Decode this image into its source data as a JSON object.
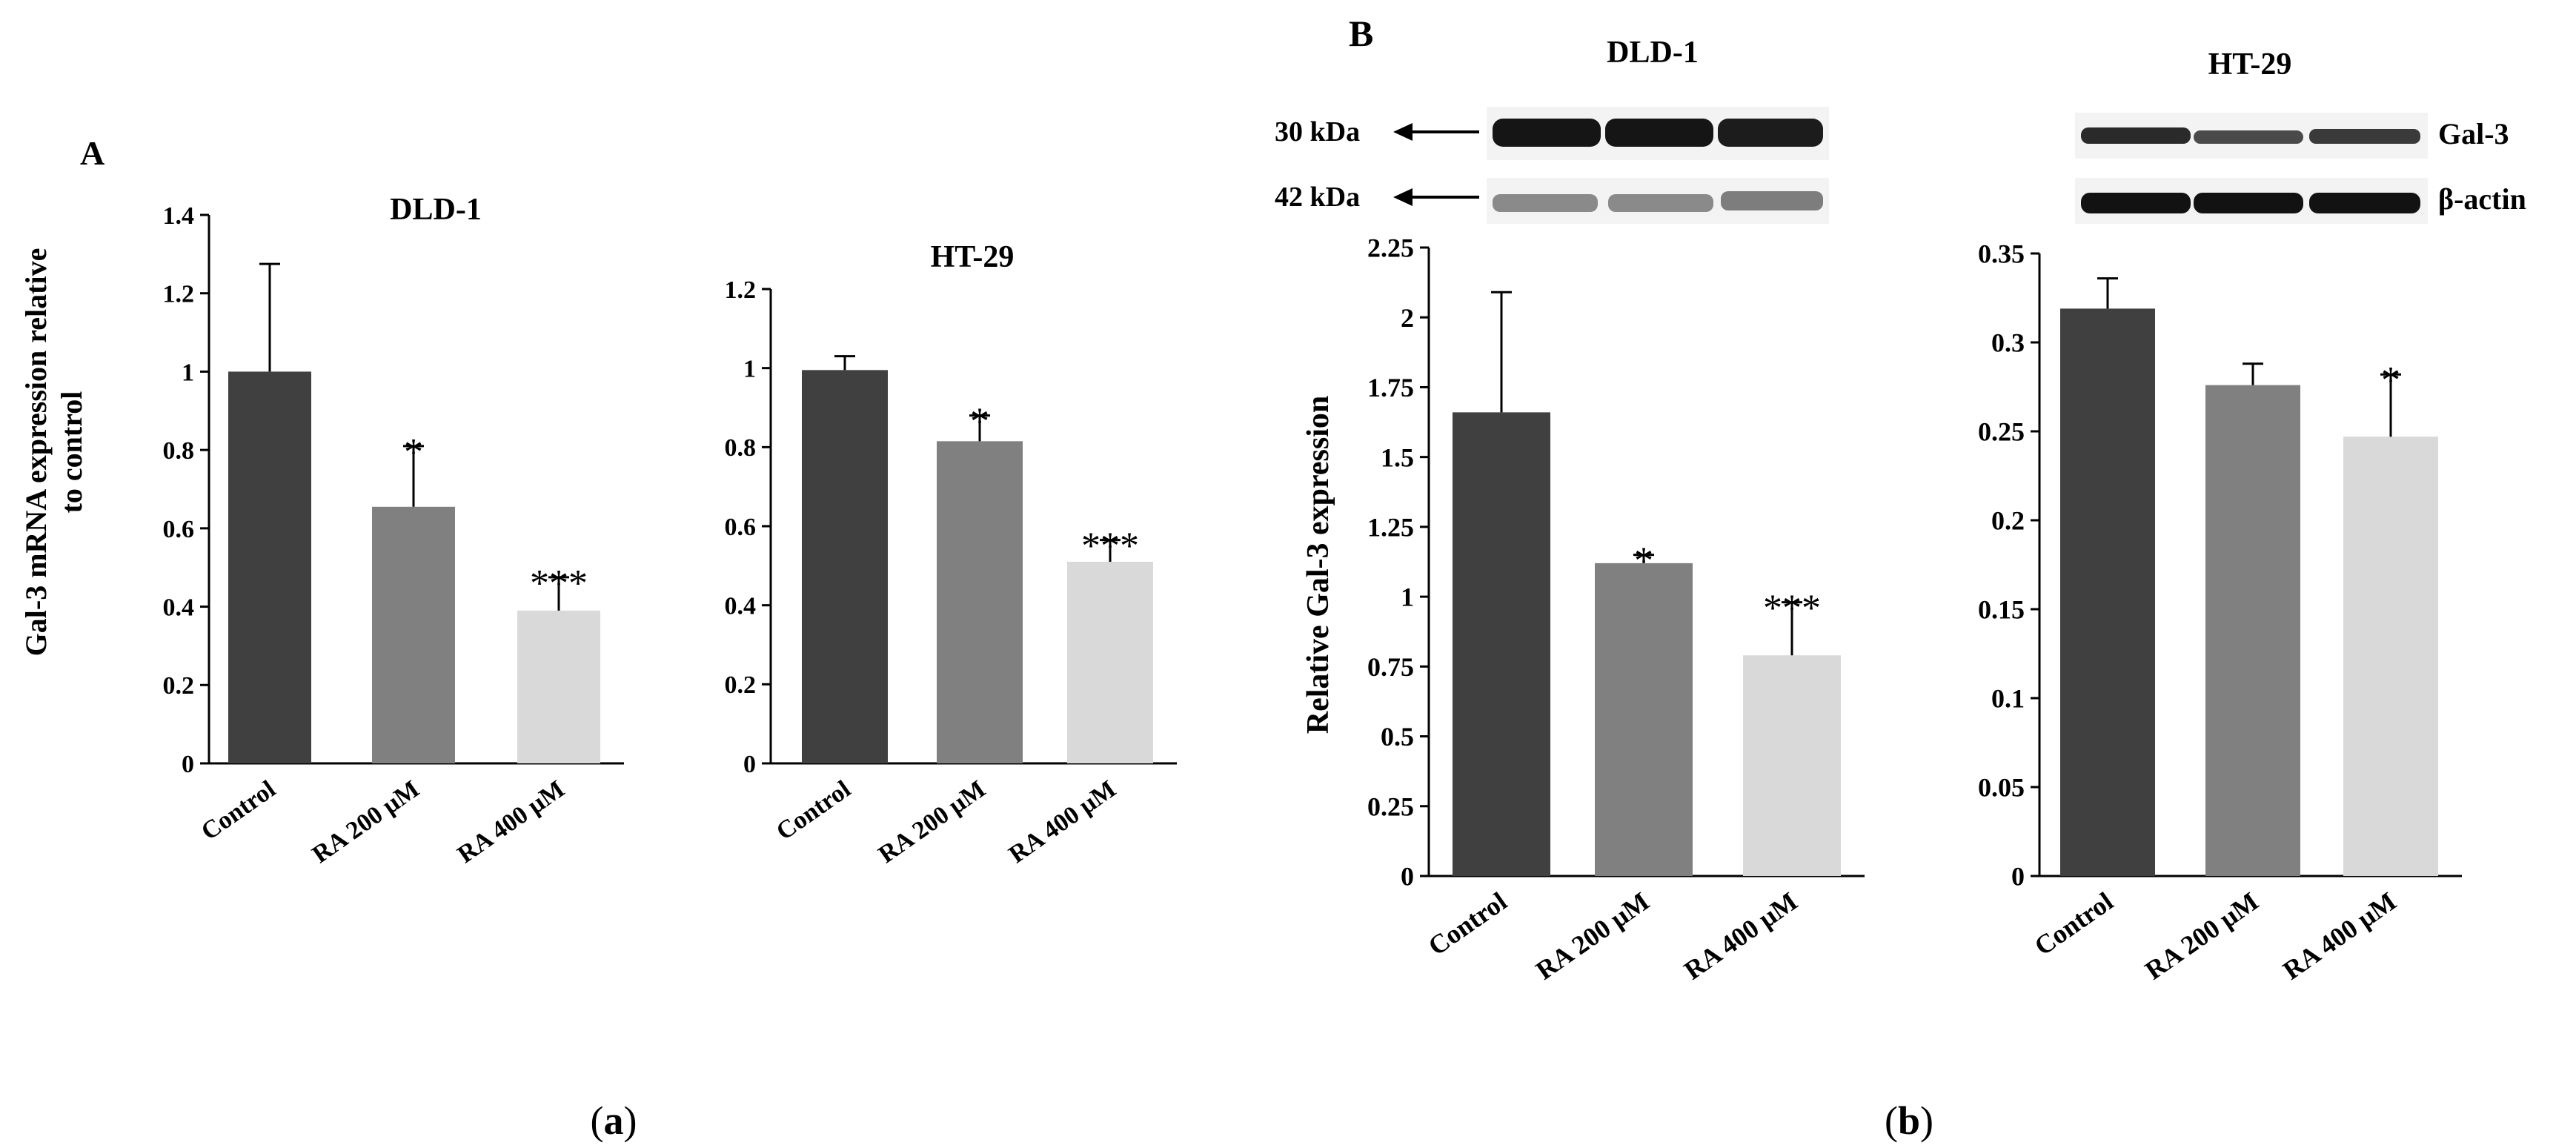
{
  "panels": {
    "a": {
      "letter": "A",
      "caption_open": "(",
      "caption_letter": "a",
      "caption_close": ")"
    },
    "b": {
      "letter": "B",
      "caption_open": "(",
      "caption_letter": "b",
      "caption_close": ")"
    }
  },
  "colors": {
    "control": "#404040",
    "ra200": "#808080",
    "ra400": "#d9d9d9",
    "blot_bg": "#f3f3f3",
    "band": "#151515",
    "band_light": "#6a6a6a"
  },
  "western_blot": {
    "dld1": {
      "title": "DLD-1",
      "marker_30": "30 kDa",
      "marker_42": "42 kDa"
    },
    "ht29": {
      "title": "HT-29",
      "label_gal3": "Gal-3",
      "label_actin": "β-actin"
    }
  },
  "chart_data": [
    {
      "type": "bar",
      "title": "DLD-1",
      "ylabel": "Gal-3 mRNA expression relative to control",
      "ylabel_lines": [
        "Gal-3 mRNA expression relative",
        "to control"
      ],
      "categories": [
        "Control",
        "RA 200 μM",
        "RA 400 μM"
      ],
      "values": [
        1.0,
        0.655,
        0.39
      ],
      "errors": [
        0.275,
        0.155,
        0.085
      ],
      "significance": [
        "",
        "*",
        "***"
      ],
      "ylim": [
        0,
        1.4
      ],
      "ticks": [
        0,
        0.2,
        0.4,
        0.6,
        0.8,
        1,
        1.2,
        1.4
      ],
      "tick_labels": [
        "0",
        "0.2",
        "0.4",
        "0.6",
        "0.8",
        "1",
        "1.2",
        "1.4"
      ]
    },
    {
      "type": "bar",
      "title": "HT-29",
      "ylabel": "",
      "categories": [
        "Control",
        "RA 200 μM",
        "RA 400 μM"
      ],
      "values": [
        0.995,
        0.815,
        0.51
      ],
      "errors": [
        0.035,
        0.065,
        0.055
      ],
      "significance": [
        "",
        "*",
        "***"
      ],
      "ylim": [
        0,
        1.2
      ],
      "ticks": [
        0,
        0.2,
        0.4,
        0.6,
        0.8,
        1,
        1.2
      ],
      "tick_labels": [
        "0",
        "0.2",
        "0.4",
        "0.6",
        "0.8",
        "1",
        "1.2"
      ]
    },
    {
      "type": "bar",
      "title": "",
      "ylabel": "Relative Gal-3 expression",
      "categories": [
        "Control",
        "RA 200 μM",
        "RA 400 μM"
      ],
      "values": [
        1.66,
        1.12,
        0.79
      ],
      "errors": [
        0.43,
        0.03,
        0.19
      ],
      "significance": [
        "",
        "*",
        "***"
      ],
      "ylim": [
        0,
        2.25
      ],
      "ticks": [
        0,
        0.25,
        0.5,
        0.75,
        1,
        1.25,
        1.5,
        1.75,
        2,
        2.25
      ],
      "tick_labels": [
        "0",
        "0.25",
        "0.5",
        "0.75",
        "1",
        "1.25",
        "1.5",
        "1.75",
        "2",
        "2.25"
      ]
    },
    {
      "type": "bar",
      "title": "",
      "ylabel": "",
      "categories": [
        "Control",
        "RA 200 μM",
        "RA 400 μM"
      ],
      "values": [
        0.319,
        0.276,
        0.247
      ],
      "errors": [
        0.017,
        0.012,
        0.035
      ],
      "significance": [
        "",
        "",
        "*"
      ],
      "ylim": [
        0,
        0.35
      ],
      "ticks": [
        0,
        0.05,
        0.1,
        0.15,
        0.2,
        0.25,
        0.3,
        0.35
      ],
      "tick_labels": [
        "0",
        "0.05",
        "0.1",
        "0.15",
        "0.2",
        "0.25",
        "0.3",
        "0.35"
      ]
    }
  ]
}
